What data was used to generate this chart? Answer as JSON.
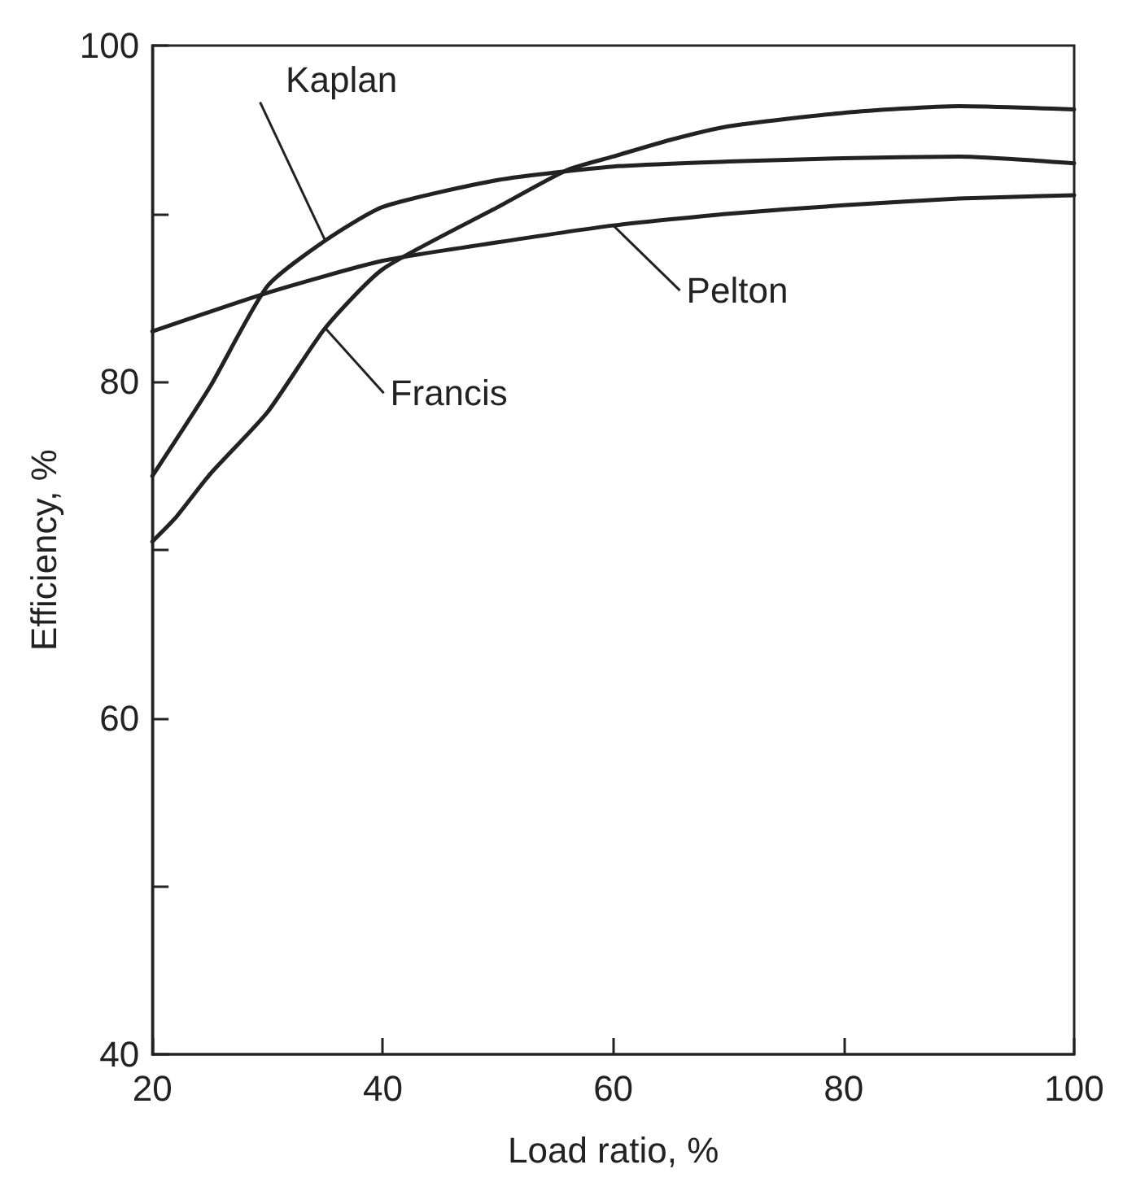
{
  "chart_data": {
    "type": "line",
    "xlabel": "Load ratio, %",
    "ylabel": "Efficiency, %",
    "xlim": [
      20,
      100
    ],
    "ylim": [
      40,
      100
    ],
    "xticks": [
      20,
      40,
      60,
      80,
      100
    ],
    "yticks": [
      40,
      {
        "value": 50,
        "label": null
      },
      60,
      {
        "value": 70,
        "label": null
      },
      80,
      {
        "value": 90,
        "label": null
      },
      100
    ],
    "grid": false,
    "legend": false,
    "marker": "none",
    "line_style": "solid",
    "series": [
      {
        "name": "Kaplan",
        "color": "#222222",
        "x": [
          20,
          25,
          30,
          35,
          40,
          50,
          60,
          70,
          80,
          90,
          100
        ],
        "values": [
          74.4,
          79.7,
          85.7,
          88.4,
          90.4,
          92.0,
          92.8,
          93.1,
          93.3,
          93.4,
          93.0
        ]
      },
      {
        "name": "Francis",
        "color": "#222222",
        "x": [
          20,
          22,
          25,
          30,
          35,
          40,
          50,
          56,
          60,
          65,
          70,
          80,
          90,
          100
        ],
        "values": [
          70.5,
          71.9,
          74.5,
          78.2,
          83.2,
          86.7,
          90.4,
          92.6,
          93.4,
          94.4,
          95.2,
          96.0,
          96.4,
          96.2
        ]
      },
      {
        "name": "Pelton",
        "color": "#222222",
        "x": [
          20,
          30,
          40,
          50,
          60,
          70,
          80,
          90,
          100
        ],
        "values": [
          83.0,
          85.3,
          87.2,
          88.3,
          89.3,
          90.0,
          90.5,
          90.9,
          91.1
        ]
      }
    ]
  }
}
